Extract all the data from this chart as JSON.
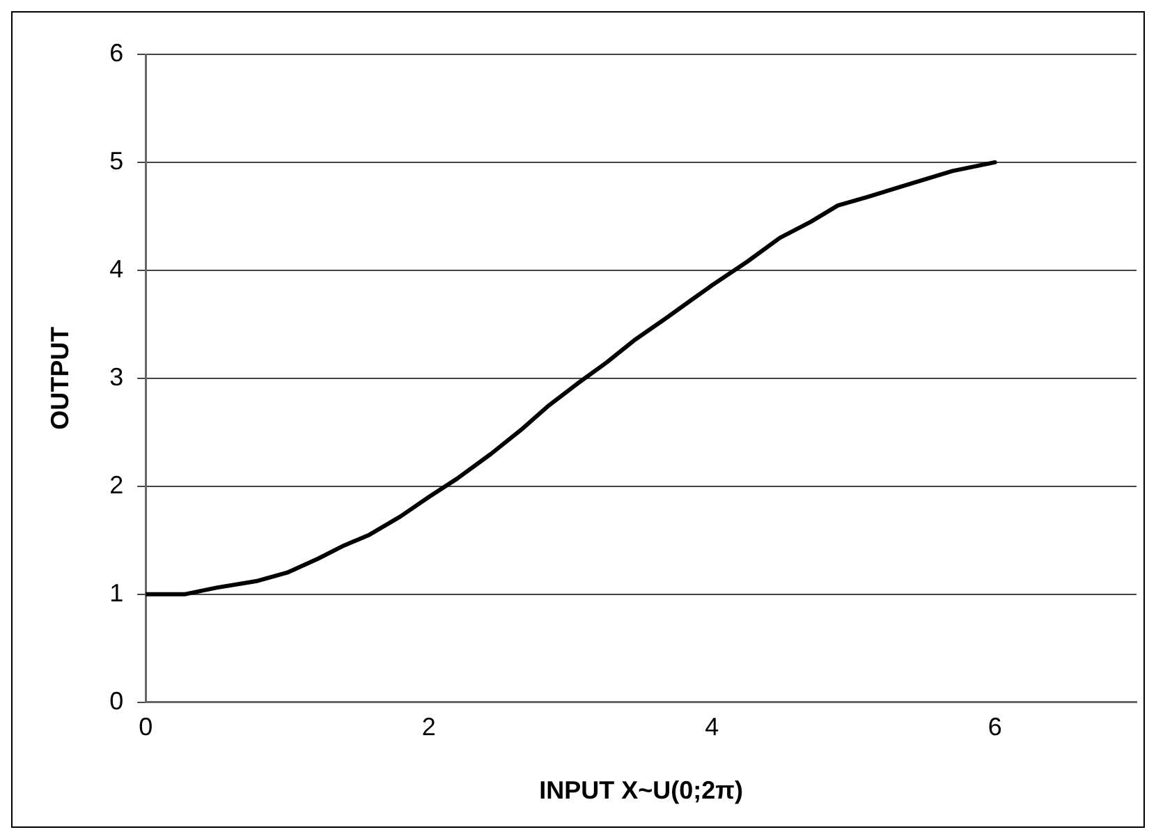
{
  "chart_data": {
    "type": "line",
    "xlabel": "INPUT X~U(0;2π)",
    "ylabel": "OUTPUT",
    "series": [
      {
        "color": "#000000",
        "x": [
          0.0,
          0.28,
          0.5,
          0.78,
          1.0,
          1.22,
          1.4,
          1.58,
          1.8,
          2.0,
          2.2,
          2.44,
          2.65,
          2.85,
          3.05,
          3.26,
          3.45,
          3.67,
          3.85,
          4.0,
          4.25,
          4.48,
          4.7,
          4.89,
          5.1,
          5.4,
          5.7,
          6.0
        ],
        "values": [
          1.0,
          1.0,
          1.06,
          1.12,
          1.2,
          1.33,
          1.45,
          1.55,
          1.72,
          1.9,
          2.07,
          2.3,
          2.52,
          2.75,
          2.95,
          3.15,
          3.35,
          3.55,
          3.72,
          3.86,
          4.08,
          4.3,
          4.45,
          4.6,
          4.68,
          4.8,
          4.92,
          5.0
        ]
      }
    ],
    "xlim": [
      0,
      7
    ],
    "xticks": [
      0,
      2,
      4,
      6
    ],
    "ylim": [
      0,
      6
    ],
    "yticks": [
      0,
      1,
      2,
      3,
      4,
      5,
      6
    ],
    "grid": "y",
    "legend": false,
    "marker": "none",
    "line_style": "solid"
  }
}
